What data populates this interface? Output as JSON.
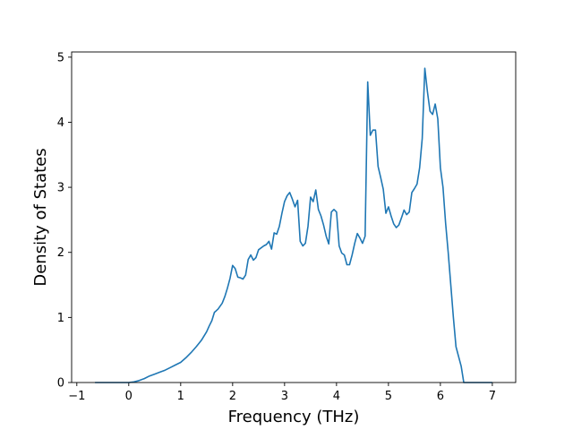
{
  "chart_data": {
    "type": "line",
    "title": "",
    "xlabel": "Frequency (THz)",
    "ylabel": "Density of States",
    "xlim": [
      -1.1,
      7.45
    ],
    "ylim": [
      0,
      5.08
    ],
    "xticks": [
      -1,
      0,
      1,
      2,
      3,
      4,
      5,
      6,
      7
    ],
    "yticks": [
      0,
      1,
      2,
      3,
      4,
      5
    ],
    "grid": false,
    "line_color": "#1f77b4",
    "series": [
      {
        "x": [
          -0.65,
          -0.3,
          0,
          0.1,
          0.2,
          0.3,
          0.4,
          0.5,
          0.6,
          0.7,
          0.8,
          0.9,
          1.0,
          1.1,
          1.2,
          1.3,
          1.4,
          1.5,
          1.55,
          1.6,
          1.65,
          1.68,
          1.72,
          1.8,
          1.85,
          1.9,
          1.95,
          2.0,
          2.05,
          2.1,
          2.15,
          2.2,
          2.25,
          2.3,
          2.35,
          2.4,
          2.45,
          2.5,
          2.6,
          2.65,
          2.7,
          2.75,
          2.8,
          2.85,
          2.9,
          2.95,
          3.0,
          3.05,
          3.1,
          3.15,
          3.2,
          3.25,
          3.3,
          3.35,
          3.4,
          3.45,
          3.5,
          3.55,
          3.6,
          3.65,
          3.7,
          3.75,
          3.8,
          3.85,
          3.9,
          3.95,
          4.0,
          4.05,
          4.1,
          4.15,
          4.2,
          4.25,
          4.3,
          4.35,
          4.4,
          4.45,
          4.5,
          4.55,
          4.6,
          4.65,
          4.7,
          4.75,
          4.8,
          4.85,
          4.9,
          4.95,
          5.0,
          5.05,
          5.1,
          5.15,
          5.2,
          5.25,
          5.3,
          5.35,
          5.4,
          5.45,
          5.5,
          5.55,
          5.6,
          5.65,
          5.7,
          5.75,
          5.8,
          5.85,
          5.9,
          5.95,
          6.0,
          6.05,
          6.1,
          6.15,
          6.2,
          6.25,
          6.3,
          6.35,
          6.4,
          6.45,
          7.0
        ],
        "y": [
          0,
          0,
          0,
          0.01,
          0.03,
          0.06,
          0.1,
          0.13,
          0.16,
          0.19,
          0.23,
          0.27,
          0.31,
          0.38,
          0.46,
          0.55,
          0.65,
          0.78,
          0.87,
          0.95,
          1.08,
          1.1,
          1.13,
          1.22,
          1.32,
          1.45,
          1.6,
          1.8,
          1.75,
          1.62,
          1.61,
          1.59,
          1.65,
          1.89,
          1.96,
          1.88,
          1.92,
          2.04,
          2.1,
          2.12,
          2.17,
          2.05,
          2.3,
          2.28,
          2.4,
          2.6,
          2.78,
          2.87,
          2.92,
          2.82,
          2.7,
          2.8,
          2.17,
          2.1,
          2.14,
          2.4,
          2.85,
          2.78,
          2.96,
          2.66,
          2.56,
          2.42,
          2.25,
          2.13,
          2.62,
          2.66,
          2.62,
          2.1,
          1.99,
          1.96,
          1.81,
          1.81,
          1.96,
          2.14,
          2.29,
          2.22,
          2.14,
          2.25,
          4.62,
          3.8,
          3.88,
          3.88,
          3.32,
          3.15,
          2.97,
          2.6,
          2.7,
          2.56,
          2.44,
          2.38,
          2.42,
          2.53,
          2.65,
          2.58,
          2.62,
          2.92,
          2.98,
          3.05,
          3.3,
          3.75,
          4.83,
          4.47,
          4.17,
          4.12,
          4.28,
          4.05,
          3.3,
          3.0,
          2.45,
          2.0,
          1.5,
          1.0,
          0.55,
          0.4,
          0.25,
          0,
          0
        ]
      }
    ]
  }
}
